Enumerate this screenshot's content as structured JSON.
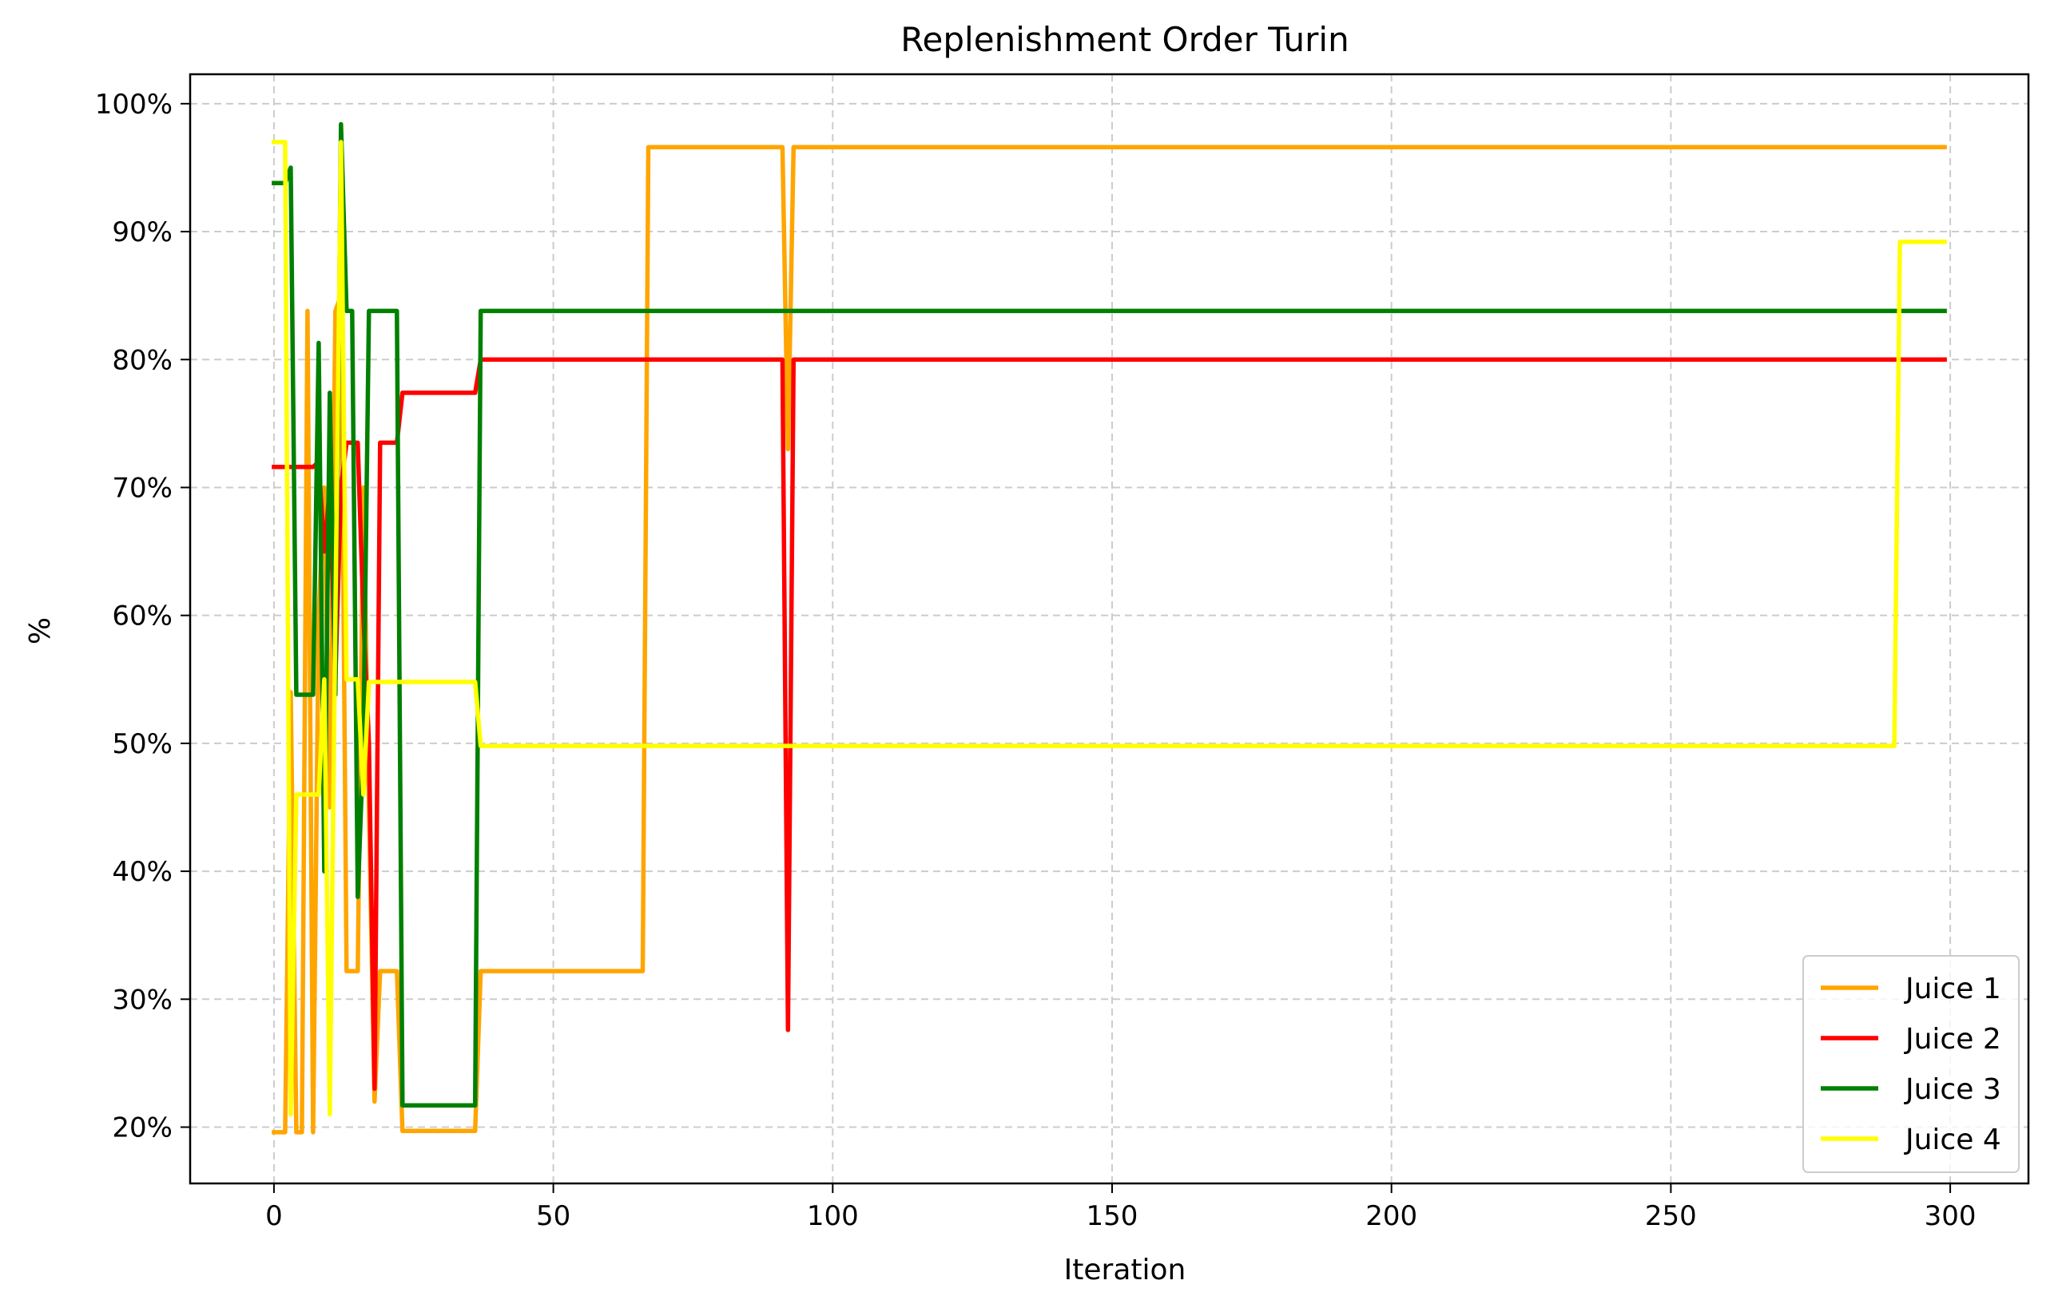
{
  "chart_data": {
    "type": "line",
    "title": "Replenishment Order Turin",
    "xlabel": "Iteration",
    "ylabel": "%",
    "xlim": [
      -15,
      314
    ],
    "ylim": [
      0.156,
      1.023
    ],
    "xticks": [
      0,
      50,
      100,
      150,
      200,
      250,
      300
    ],
    "yticks": [
      0.2,
      0.3,
      0.4,
      0.5,
      0.6,
      0.7,
      0.8,
      0.9,
      1.0
    ],
    "ytick_labels": [
      "20%",
      "30%",
      "40%",
      "50%",
      "60%",
      "70%",
      "80%",
      "90%",
      "100%"
    ],
    "grid": true,
    "legend_position": "lower-right",
    "series": [
      {
        "name": "Juice 1",
        "color": "#ffa500",
        "points": [
          [
            0,
            0.196
          ],
          [
            1,
            0.196
          ],
          [
            2,
            0.196
          ],
          [
            3,
            0.54
          ],
          [
            4,
            0.196
          ],
          [
            5,
            0.196
          ],
          [
            6,
            0.838
          ],
          [
            7,
            0.196
          ],
          [
            8,
            0.6
          ],
          [
            9,
            0.7
          ],
          [
            10,
            0.45
          ],
          [
            11,
            0.838
          ],
          [
            12,
            0.85
          ],
          [
            13,
            0.322
          ],
          [
            14,
            0.322
          ],
          [
            15,
            0.322
          ],
          [
            16,
            0.7
          ],
          [
            17,
            0.45
          ],
          [
            18,
            0.22
          ],
          [
            19,
            0.322
          ],
          [
            20,
            0.322
          ],
          [
            21,
            0.322
          ],
          [
            22,
            0.322
          ],
          [
            23,
            0.197
          ],
          [
            36,
            0.197
          ],
          [
            37,
            0.322
          ],
          [
            66,
            0.322
          ],
          [
            67,
            0.966
          ],
          [
            91,
            0.966
          ],
          [
            92,
            0.73
          ],
          [
            93,
            0.966
          ],
          [
            299,
            0.966
          ]
        ]
      },
      {
        "name": "Juice 2",
        "color": "#ff0000",
        "points": [
          [
            0,
            0.716
          ],
          [
            7,
            0.716
          ],
          [
            8,
            0.72
          ],
          [
            9,
            0.65
          ],
          [
            10,
            0.7
          ],
          [
            11,
            0.55
          ],
          [
            12,
            0.7
          ],
          [
            13,
            0.735
          ],
          [
            14,
            0.735
          ],
          [
            15,
            0.735
          ],
          [
            16,
            0.6
          ],
          [
            17,
            0.5
          ],
          [
            18,
            0.23
          ],
          [
            19,
            0.735
          ],
          [
            22,
            0.735
          ],
          [
            23,
            0.774
          ],
          [
            36,
            0.774
          ],
          [
            37,
            0.8
          ],
          [
            91,
            0.8
          ],
          [
            92,
            0.276
          ],
          [
            93,
            0.8
          ],
          [
            299,
            0.8
          ]
        ]
      },
      {
        "name": "Juice 3",
        "color": "#008000",
        "points": [
          [
            0,
            0.938
          ],
          [
            2,
            0.938
          ],
          [
            3,
            0.95
          ],
          [
            4,
            0.538
          ],
          [
            5,
            0.538
          ],
          [
            6,
            0.538
          ],
          [
            7,
            0.538
          ],
          [
            8,
            0.813
          ],
          [
            9,
            0.4
          ],
          [
            10,
            0.774
          ],
          [
            11,
            0.538
          ],
          [
            12,
            0.984
          ],
          [
            13,
            0.838
          ],
          [
            14,
            0.838
          ],
          [
            15,
            0.38
          ],
          [
            16,
            0.5
          ],
          [
            17,
            0.838
          ],
          [
            22,
            0.838
          ],
          [
            23,
            0.217
          ],
          [
            36,
            0.217
          ],
          [
            37,
            0.838
          ],
          [
            299,
            0.838
          ]
        ]
      },
      {
        "name": "Juice 4",
        "color": "#ffff00",
        "points": [
          [
            0,
            0.97
          ],
          [
            2,
            0.97
          ],
          [
            3,
            0.21
          ],
          [
            4,
            0.46
          ],
          [
            5,
            0.46
          ],
          [
            6,
            0.46
          ],
          [
            7,
            0.46
          ],
          [
            8,
            0.46
          ],
          [
            9,
            0.55
          ],
          [
            10,
            0.21
          ],
          [
            11,
            0.6
          ],
          [
            12,
            0.97
          ],
          [
            13,
            0.55
          ],
          [
            14,
            0.55
          ],
          [
            15,
            0.55
          ],
          [
            16,
            0.46
          ],
          [
            17,
            0.548
          ],
          [
            36,
            0.548
          ],
          [
            37,
            0.498
          ],
          [
            290,
            0.498
          ],
          [
            291,
            0.892
          ],
          [
            299,
            0.892
          ]
        ]
      }
    ]
  }
}
